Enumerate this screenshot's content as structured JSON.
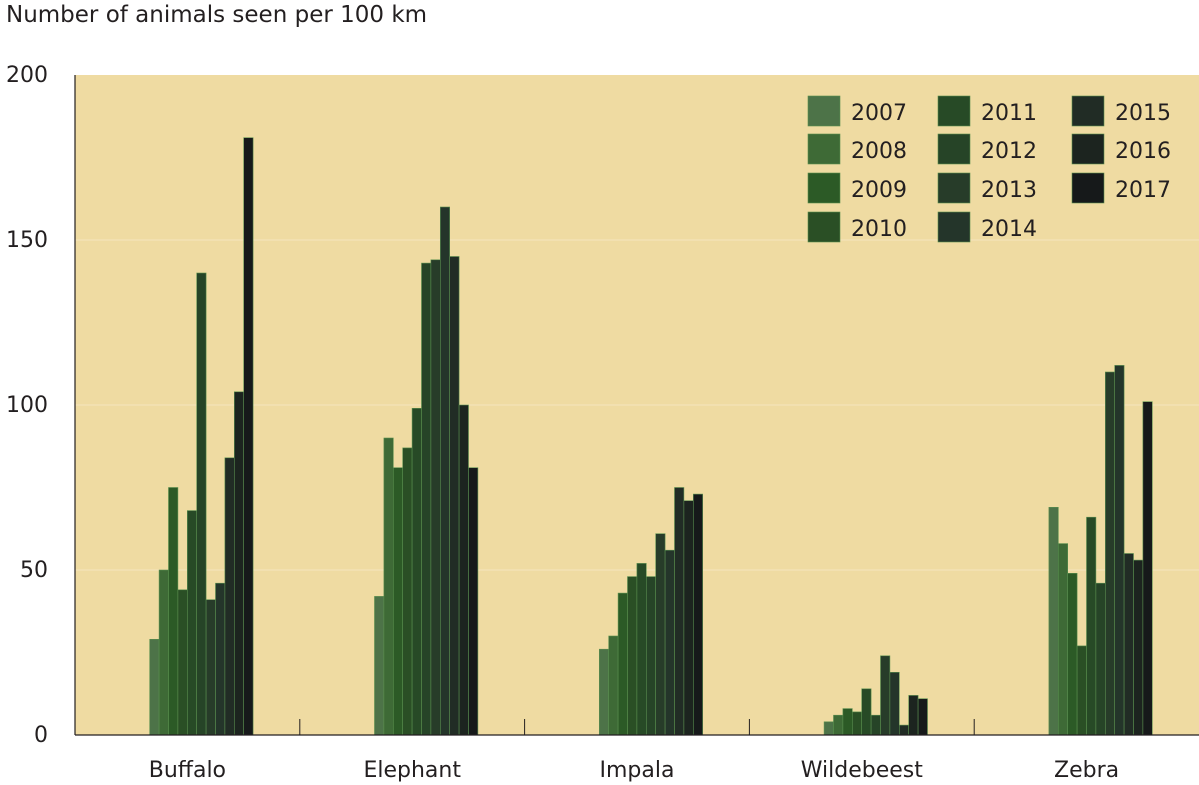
{
  "chart_data": {
    "type": "bar",
    "title": "Number of animals seen per 100 km",
    "xlabel": "",
    "ylabel": "Number of animals seen per 100 km",
    "ylim": [
      0,
      200
    ],
    "yticks": [
      "0",
      "50",
      "100",
      "150",
      "200"
    ],
    "grid": true,
    "legend_position": "top-right",
    "categories": [
      "Buffalo",
      "Elephant",
      "Impala",
      "Wildebeest",
      "Zebra"
    ],
    "series": [
      {
        "name": "2007",
        "color": "#4d7348",
        "values": [
          29,
          42,
          26,
          4,
          69
        ]
      },
      {
        "name": "2008",
        "color": "#3e6a36",
        "values": [
          50,
          90,
          30,
          6,
          58
        ]
      },
      {
        "name": "2009",
        "color": "#2c5a26",
        "values": [
          75,
          81,
          43,
          8,
          49
        ]
      },
      {
        "name": "2010",
        "color": "#2a4f25",
        "values": [
          44,
          87,
          48,
          7,
          27
        ]
      },
      {
        "name": "2011",
        "color": "#274a26",
        "values": [
          68,
          99,
          52,
          14,
          66
        ]
      },
      {
        "name": "2012",
        "color": "#264427",
        "values": [
          140,
          143,
          48,
          6,
          46
        ]
      },
      {
        "name": "2013",
        "color": "#273c29",
        "values": [
          41,
          144,
          61,
          24,
          110
        ]
      },
      {
        "name": "2014",
        "color": "#24352a",
        "values": [
          46,
          160,
          56,
          19,
          112
        ]
      },
      {
        "name": "2015",
        "color": "#212c25",
        "values": [
          84,
          145,
          75,
          3,
          55
        ]
      },
      {
        "name": "2016",
        "color": "#1c241f",
        "values": [
          104,
          100,
          71,
          12,
          53
        ]
      },
      {
        "name": "2017",
        "color": "#16191a",
        "values": [
          181,
          81,
          73,
          11,
          101
        ]
      }
    ]
  }
}
